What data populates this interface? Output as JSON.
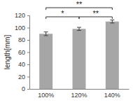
{
  "chart_data": {
    "type": "bar",
    "categories": [
      "100%",
      "120%",
      "140%"
    ],
    "values": [
      90,
      98,
      110
    ],
    "errors": [
      3,
      2.5,
      2.5
    ],
    "color": "#a6a6a6",
    "y_label": "length[mm]",
    "ylim": [
      0,
      120
    ],
    "yticks": [
      0,
      20,
      40,
      60,
      80,
      100,
      120
    ],
    "grid": false,
    "comparisons": [
      {
        "categories": [
          "100%",
          "120%"
        ],
        "label": "*"
      },
      {
        "categories": [
          "100%",
          "140%"
        ],
        "label": "**"
      },
      {
        "categories": [
          "120%",
          "140%"
        ],
        "label": "**"
      }
    ]
  }
}
